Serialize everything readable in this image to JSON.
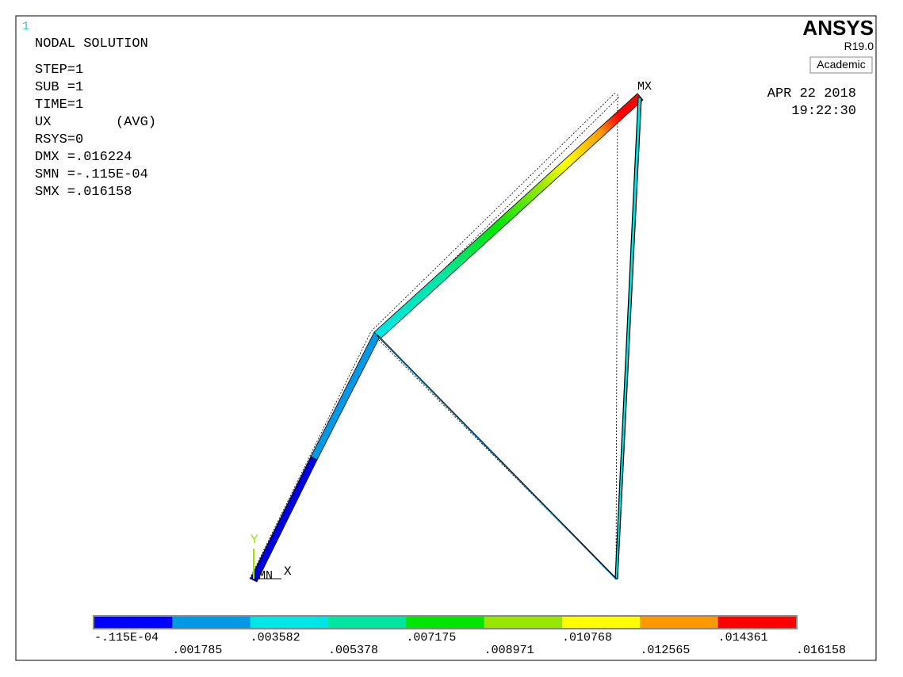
{
  "window_number": "1",
  "header": {
    "title": "NODAL SOLUTION",
    "lines": [
      "STEP=1",
      "SUB =1",
      "TIME=1",
      "UX        (AVG)",
      "RSYS=0",
      "DMX =.016224",
      "SMN =-.115E-04",
      "SMX =.016158"
    ]
  },
  "logo": {
    "name": "ANSYS",
    "release": "R19.0",
    "edition": "Academic"
  },
  "timestamp": {
    "date": "APR 22 2018",
    "time": "19:22:30"
  },
  "markers": {
    "max": "MX",
    "min": "MN",
    "x_axis": "X",
    "y_axis": "Y"
  },
  "legend": {
    "colors": [
      "#0000ff",
      "#0099e6",
      "#00e6e6",
      "#00e6a0",
      "#00e600",
      "#99e600",
      "#ffff00",
      "#ff9900",
      "#ff0000"
    ],
    "labels": [
      "-.115E-04",
      ".001785",
      ".003582",
      ".005378",
      ".007175",
      ".008971",
      ".010768",
      ".012565",
      ".014361",
      ".016158"
    ]
  }
}
